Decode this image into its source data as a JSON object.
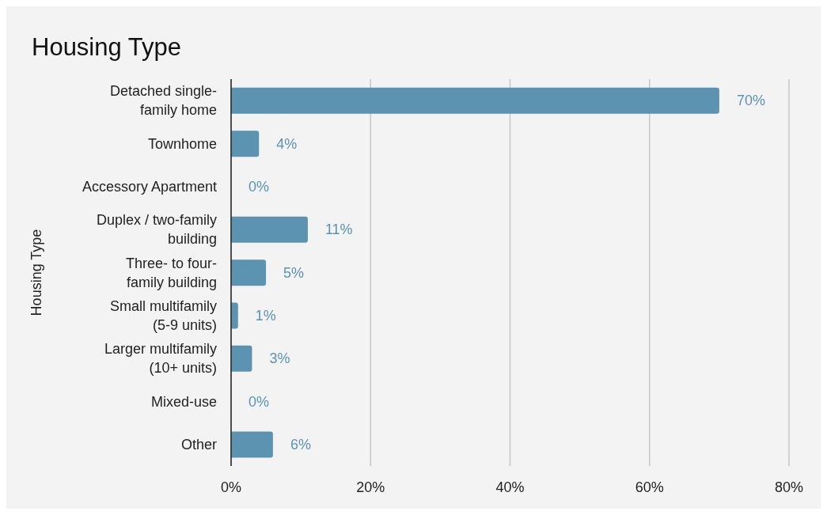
{
  "chart_data": {
    "type": "bar",
    "orientation": "horizontal",
    "title": "Housing Type",
    "ylabel": "Housing Type",
    "categories": [
      "Detached single-family home",
      "Townhome",
      "Accessory Apartment",
      "Duplex / two-family building",
      "Three- to four-family building",
      "Small multifamily (5-9 units)",
      "Larger multifamily (10+ units)",
      "Mixed-use",
      "Other"
    ],
    "values": [
      70,
      4,
      0,
      11,
      5,
      1,
      3,
      0,
      6
    ],
    "value_labels": [
      "70%",
      "4%",
      "0%",
      "11%",
      "5%",
      "1%",
      "3%",
      "0%",
      "6%"
    ],
    "color": "#5b93b0",
    "xlim": [
      0,
      80
    ],
    "xticks": [
      {
        "value": 0,
        "label": "0%"
      },
      {
        "value": 20,
        "label": "20%"
      },
      {
        "value": 40,
        "label": "40%"
      },
      {
        "value": 60,
        "label": "60%"
      },
      {
        "value": 80,
        "label": "80%"
      }
    ],
    "grid": "x"
  }
}
